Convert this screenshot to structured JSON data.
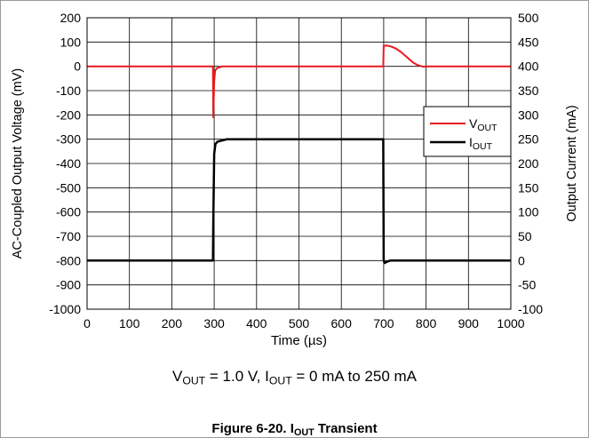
{
  "chart_data": {
    "type": "line",
    "xlabel": "Time (µs)",
    "ylabel_left": "AC-Coupled Output Voltage (mV)",
    "ylabel_right": "Output Current (mA)",
    "xlim": [
      0,
      1000
    ],
    "ylim_left": [
      -1000,
      200
    ],
    "ylim_right": [
      -100,
      500
    ],
    "x_ticks": [
      0,
      100,
      200,
      300,
      400,
      500,
      600,
      700,
      800,
      900,
      1000
    ],
    "y_ticks_left": [
      200,
      100,
      0,
      -100,
      -200,
      -300,
      -400,
      -500,
      -600,
      -700,
      -800,
      -900,
      -1000
    ],
    "y_ticks_right": [
      500,
      450,
      400,
      350,
      300,
      250,
      200,
      150,
      100,
      50,
      0,
      -50,
      -100
    ],
    "grid": true,
    "legend_position": "right",
    "series": [
      {
        "name": "VOUT",
        "name_main": "V",
        "name_sub": "OUT",
        "axis": "left",
        "color": "#e8191e",
        "x": [
          0,
          297,
          298,
          300,
          302,
          305,
          310,
          320,
          699,
          700,
          710,
          720,
          730,
          740,
          750,
          760,
          770,
          780,
          790,
          795,
          800,
          1000
        ],
        "y": [
          0,
          0,
          -210,
          -60,
          -20,
          -10,
          -5,
          0,
          0,
          85,
          85,
          80,
          72,
          60,
          45,
          30,
          15,
          5,
          0,
          -2,
          0,
          0
        ]
      },
      {
        "name": "IOUT",
        "name_main": "I",
        "name_sub": "OUT",
        "axis": "right",
        "color": "#000000",
        "x": [
          0,
          297,
          298,
          300,
          303,
          308,
          330,
          699,
          700,
          702,
          706,
          715,
          1000
        ],
        "y": [
          0,
          0,
          80,
          220,
          240,
          245,
          250,
          250,
          0,
          -5,
          -3,
          0,
          0
        ]
      }
    ]
  },
  "conditions": {
    "v_main": "V",
    "v_sub": "OUT",
    "v_text": " = 1.0 V, ",
    "i_main": "I",
    "i_sub": "OUT",
    "i_text": " = 0 mA to 250 mA"
  },
  "caption": {
    "prefix": "Figure 6-20. ",
    "main": "I",
    "sub": "OUT",
    "suffix": " Transient"
  }
}
